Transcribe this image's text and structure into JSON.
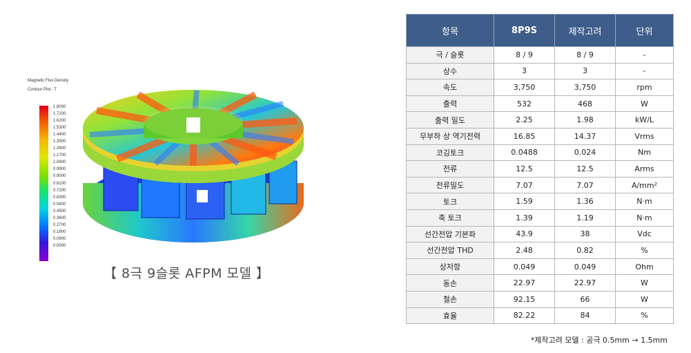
{
  "figure": {
    "legend_title_1": "Magnetic Flux Density",
    "legend_title_2": "Contour Plot : T",
    "legend_values": [
      "1.8000",
      "1.7100",
      "1.6200",
      "1.5300",
      "1.4400",
      "1.3500",
      "1.2600",
      "1.1700",
      "1.0800",
      "0.9900",
      "0.9000",
      "0.8100",
      "0.7200",
      "0.6300",
      "0.5400",
      "0.4500",
      "0.3600",
      "0.2700",
      "0.1800",
      "0.0900",
      "0.0000"
    ],
    "caption": "【 8극 9슬롯 AFPM 모델 】"
  },
  "table": {
    "headers": [
      "항목",
      "8P9S",
      "제작고려",
      "단위"
    ],
    "rows": [
      [
        "극 / 슬롯",
        "8 / 9",
        "8 / 9",
        "-"
      ],
      [
        "상수",
        "3",
        "3",
        "-"
      ],
      [
        "속도",
        "3,750",
        "3,750",
        "rpm"
      ],
      [
        "출력",
        "532",
        "468",
        "W"
      ],
      [
        "출력 밀도",
        "2.25",
        "1.98",
        "kW/L"
      ],
      [
        "무부하 상 역기전력",
        "16.85",
        "14.37",
        "Vrms"
      ],
      [
        "코깅토크",
        "0.0488",
        "0.024",
        "Nm"
      ],
      [
        "전류",
        "12.5",
        "12.5",
        "Arms"
      ],
      [
        "전류밀도",
        "7.07",
        "7.07",
        "A/mm²"
      ],
      [
        "토크",
        "1.59",
        "1.36",
        "N·m"
      ],
      [
        "축 토크",
        "1.39",
        "1.19",
        "N·m"
      ],
      [
        "선간전압 기본파",
        "43.9",
        "38",
        "Vdc"
      ],
      [
        "선간전압 THD",
        "2.48",
        "0.82",
        "%"
      ],
      [
        "상저항",
        "0.049",
        "0.049",
        "Ohm"
      ],
      [
        "동손",
        "22.97",
        "22.97",
        "W"
      ],
      [
        "철손",
        "92.15",
        "66",
        "W"
      ],
      [
        "효율",
        "82.22",
        "84",
        "%"
      ]
    ]
  },
  "footnote": "*제작고려 모델 : 공극 0.5mm → 1.5mm"
}
